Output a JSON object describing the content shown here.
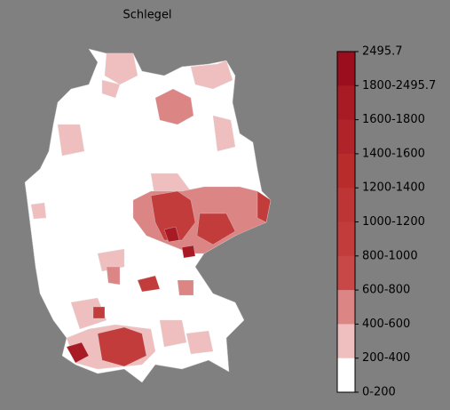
{
  "title": "Schlegel",
  "colorbar": {
    "labels": [
      "2495.7",
      "1800-2495.7",
      "1600-1800",
      "1400-1600",
      "1200-1400",
      "1000-1200",
      "800-1000",
      "600-800",
      "400-600",
      "200-400",
      "0-200"
    ],
    "colors": [
      "#9b0e1e",
      "#a81b25",
      "#b02328",
      "#b82c2c",
      "#be3535",
      "#c33c3c",
      "#c84848",
      "#dc8585",
      "#efbfbf",
      "#ffffff"
    ]
  }
}
